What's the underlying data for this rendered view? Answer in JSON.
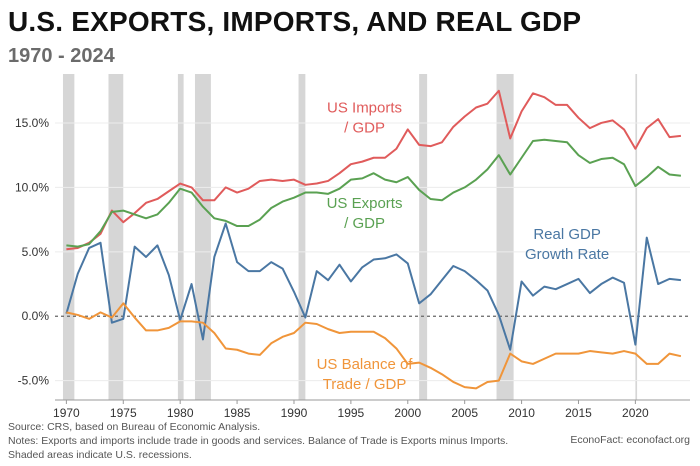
{
  "header": {
    "title": "U.S. EXPORTS, IMPORTS, AND REAL GDP",
    "subtitle": "1970 - 2024"
  },
  "footer": {
    "source": "Source: CRS, based on Bureau of Economic Analysis.",
    "notes": "Notes: Exports and imports include trade in goods and services. Balance of Trade is Exports minus Imports.",
    "shaded": "Shaded areas indicate U.S. recessions.",
    "credit": "EconoFact:   econofact.org"
  },
  "chart_data": {
    "type": "line",
    "xlim": [
      1969,
      2024.8
    ],
    "ylim": [
      -6.5,
      18.8
    ],
    "x_ticks": [
      1970,
      1975,
      1980,
      1985,
      1990,
      1995,
      2000,
      2005,
      2010,
      2015,
      2020
    ],
    "y_ticks": [
      {
        "value": -5,
        "label": "-5.0%"
      },
      {
        "value": 0,
        "label": "0.0%"
      },
      {
        "value": 5,
        "label": "5.0%"
      },
      {
        "value": 10,
        "label": "10.0%"
      },
      {
        "value": 15,
        "label": "15.0%"
      }
    ],
    "grid": true,
    "zero_line": true,
    "recessions": [
      [
        1969.7,
        1970.7
      ],
      [
        1973.7,
        1975.0
      ],
      [
        1979.8,
        1980.3
      ],
      [
        1981.3,
        1982.7
      ],
      [
        1990.4,
        1991.0
      ],
      [
        2001.0,
        2001.7
      ],
      [
        2007.8,
        2009.3
      ],
      [
        2020.0,
        2020.15
      ]
    ],
    "x": [
      1970,
      1971,
      1972,
      1973,
      1974,
      1975,
      1976,
      1977,
      1978,
      1979,
      1980,
      1981,
      1982,
      1983,
      1984,
      1985,
      1986,
      1987,
      1988,
      1989,
      1990,
      1991,
      1992,
      1993,
      1994,
      1995,
      1996,
      1997,
      1998,
      1999,
      2000,
      2001,
      2002,
      2003,
      2004,
      2005,
      2006,
      2007,
      2008,
      2009,
      2010,
      2011,
      2012,
      2013,
      2014,
      2015,
      2016,
      2017,
      2018,
      2019,
      2020,
      2021,
      2022,
      2023,
      2024
    ],
    "series": [
      {
        "name": "US Imports / GDP",
        "label_lines": [
          "US Imports",
          "/ GDP"
        ],
        "color": "#e05b5b",
        "values": [
          5.2,
          5.3,
          5.7,
          6.4,
          8.2,
          7.3,
          8.0,
          8.8,
          9.1,
          9.7,
          10.3,
          10.0,
          9.0,
          9.0,
          10.0,
          9.6,
          9.9,
          10.5,
          10.6,
          10.5,
          10.6,
          10.2,
          10.3,
          10.5,
          11.1,
          11.8,
          12.0,
          12.3,
          12.3,
          13.0,
          14.5,
          13.3,
          13.2,
          13.5,
          14.7,
          15.5,
          16.2,
          16.5,
          17.5,
          13.8,
          15.9,
          17.3,
          17.0,
          16.4,
          16.4,
          15.4,
          14.6,
          15.0,
          15.2,
          14.5,
          13.0,
          14.6,
          15.3,
          13.9,
          14.0
        ]
      },
      {
        "name": "US Exports / GDP",
        "label_lines": [
          "US Exports",
          "/ GDP"
        ],
        "color": "#5aa152",
        "values": [
          5.5,
          5.4,
          5.6,
          6.6,
          8.1,
          8.2,
          7.9,
          7.6,
          7.9,
          8.8,
          9.9,
          9.6,
          8.5,
          7.6,
          7.4,
          7.0,
          7.0,
          7.5,
          8.4,
          8.9,
          9.2,
          9.6,
          9.6,
          9.5,
          9.9,
          10.6,
          10.7,
          11.1,
          10.6,
          10.4,
          10.8,
          9.8,
          9.1,
          9.0,
          9.6,
          10.0,
          10.6,
          11.4,
          12.5,
          11.0,
          12.3,
          13.6,
          13.7,
          13.6,
          13.5,
          12.5,
          11.9,
          12.2,
          12.3,
          11.8,
          10.1,
          10.8,
          11.6,
          11.0,
          10.9
        ]
      },
      {
        "name": "Real GDP Growth Rate",
        "label_lines": [
          "Real GDP",
          "Growth Rate"
        ],
        "color": "#4a77a3",
        "values": [
          0.2,
          3.3,
          5.3,
          5.7,
          -0.5,
          -0.2,
          5.4,
          4.6,
          5.5,
          3.2,
          -0.3,
          2.5,
          -1.8,
          4.6,
          7.2,
          4.2,
          3.5,
          3.5,
          4.2,
          3.7,
          1.9,
          -0.1,
          3.5,
          2.8,
          4.0,
          2.7,
          3.8,
          4.4,
          4.5,
          4.8,
          4.1,
          1.0,
          1.7,
          2.8,
          3.9,
          3.5,
          2.8,
          2.0,
          0.1,
          -2.6,
          2.7,
          1.6,
          2.3,
          2.1,
          2.5,
          2.9,
          1.8,
          2.5,
          3.0,
          2.6,
          -2.2,
          6.1,
          2.5,
          2.9,
          2.8
        ]
      },
      {
        "name": "US Balance of Trade / GDP",
        "label_lines": [
          "US Balance of",
          "Trade / GDP"
        ],
        "color": "#f0953a",
        "values": [
          0.3,
          0.1,
          -0.2,
          0.3,
          -0.1,
          1.0,
          -0.1,
          -1.1,
          -1.1,
          -0.9,
          -0.4,
          -0.4,
          -0.5,
          -1.3,
          -2.5,
          -2.6,
          -2.9,
          -3.0,
          -2.1,
          -1.6,
          -1.3,
          -0.5,
          -0.6,
          -1.0,
          -1.3,
          -1.2,
          -1.2,
          -1.2,
          -1.7,
          -2.5,
          -3.7,
          -3.6,
          -4.0,
          -4.5,
          -5.1,
          -5.5,
          -5.6,
          -5.1,
          -5.0,
          -2.9,
          -3.5,
          -3.7,
          -3.3,
          -2.9,
          -2.9,
          -2.9,
          -2.7,
          -2.8,
          -2.9,
          -2.7,
          -2.9,
          -3.7,
          -3.7,
          -2.9,
          -3.1
        ]
      }
    ]
  }
}
